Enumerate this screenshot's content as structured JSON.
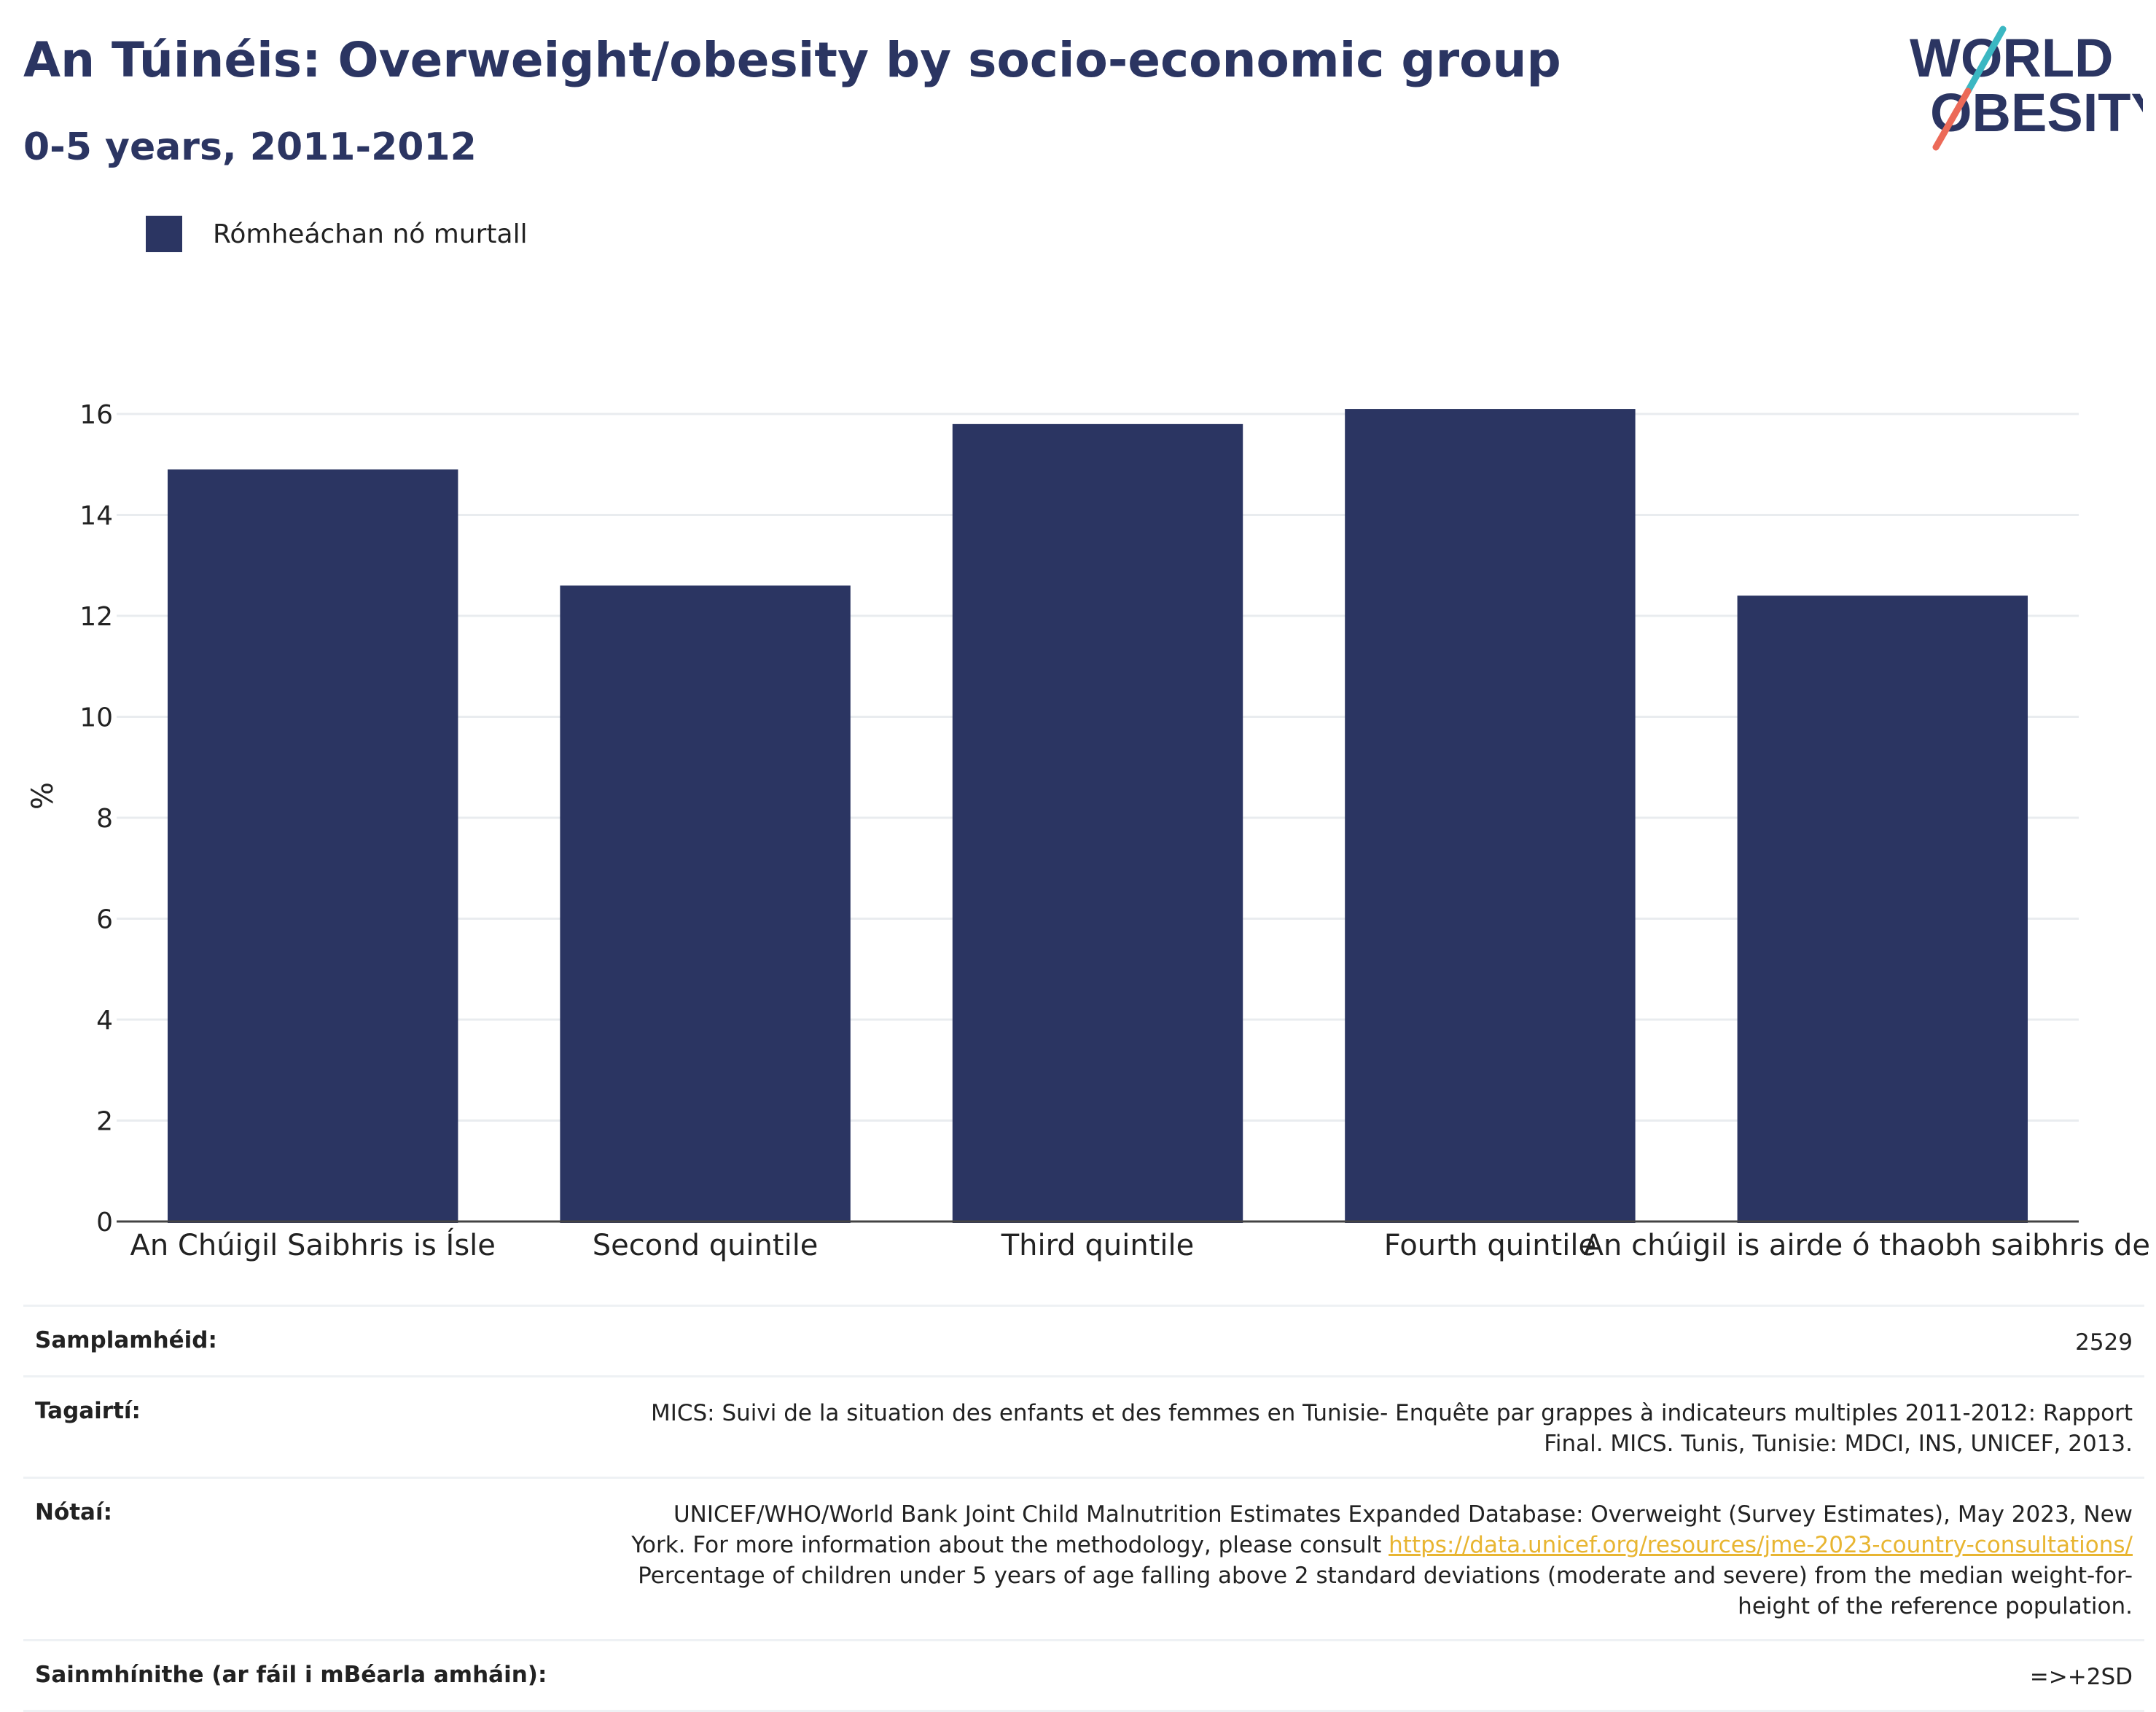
{
  "header": {
    "title": "An Túinéis: Overweight/obesity by socio-economic group",
    "subtitle": "0-5 years, 2011-2012"
  },
  "logo": {
    "line1": "WORLD",
    "line2": "OBESITY",
    "colors": {
      "navy": "#2b3562",
      "teal": "#3bb7c2",
      "coral": "#ec6a58"
    }
  },
  "legend": {
    "label": "Rómheáchan nó murtall",
    "color": "#2b3562"
  },
  "chart_data": {
    "type": "bar",
    "categories": [
      "An Chúigil Saibhris is Ísle",
      "Second quintile",
      "Third quintile",
      "Fourth quintile",
      "An chúigil is airde ó thaobh saibhris de"
    ],
    "series": [
      {
        "name": "Rómheáchan nó murtall",
        "values": [
          14.9,
          12.6,
          15.8,
          16.1,
          12.4
        ],
        "color": "#2b3562"
      }
    ],
    "ylabel": "%",
    "ylim": [
      0,
      16
    ],
    "yticks": [
      0,
      2,
      4,
      6,
      8,
      10,
      12,
      14,
      16
    ],
    "grid": true
  },
  "info": {
    "sample": {
      "label": "Samplamhéid:",
      "value": "2529"
    },
    "references": {
      "label": "Tagairtí:",
      "value": "MICS: Suivi de la situation des enfants et des femmes en Tunisie- Enquête par grappes à indicateurs multiples 2011-2012: Rapport Final. MICS. Tunis, Tunisie: MDCI, INS, UNICEF, 2013."
    },
    "notes": {
      "label": "Nótaí:",
      "text_before": "UNICEF/WHO/World Bank Joint Child Malnutrition Estimates Expanded Database: Overweight (Survey Estimates), May 2023, New York. For more information about the methodology, please consult ",
      "link": "https://data.unicef.org/resources/jme-2023-country-consultations/",
      "text_after": " Percentage of children under 5 years of age falling above 2 standard deviations (moderate and severe) from the median weight-for-height of the reference population."
    },
    "definitions": {
      "label": "Sainmhínithe (ar fáil i mBéarla amháin):",
      "value": "=>+2SD"
    }
  }
}
